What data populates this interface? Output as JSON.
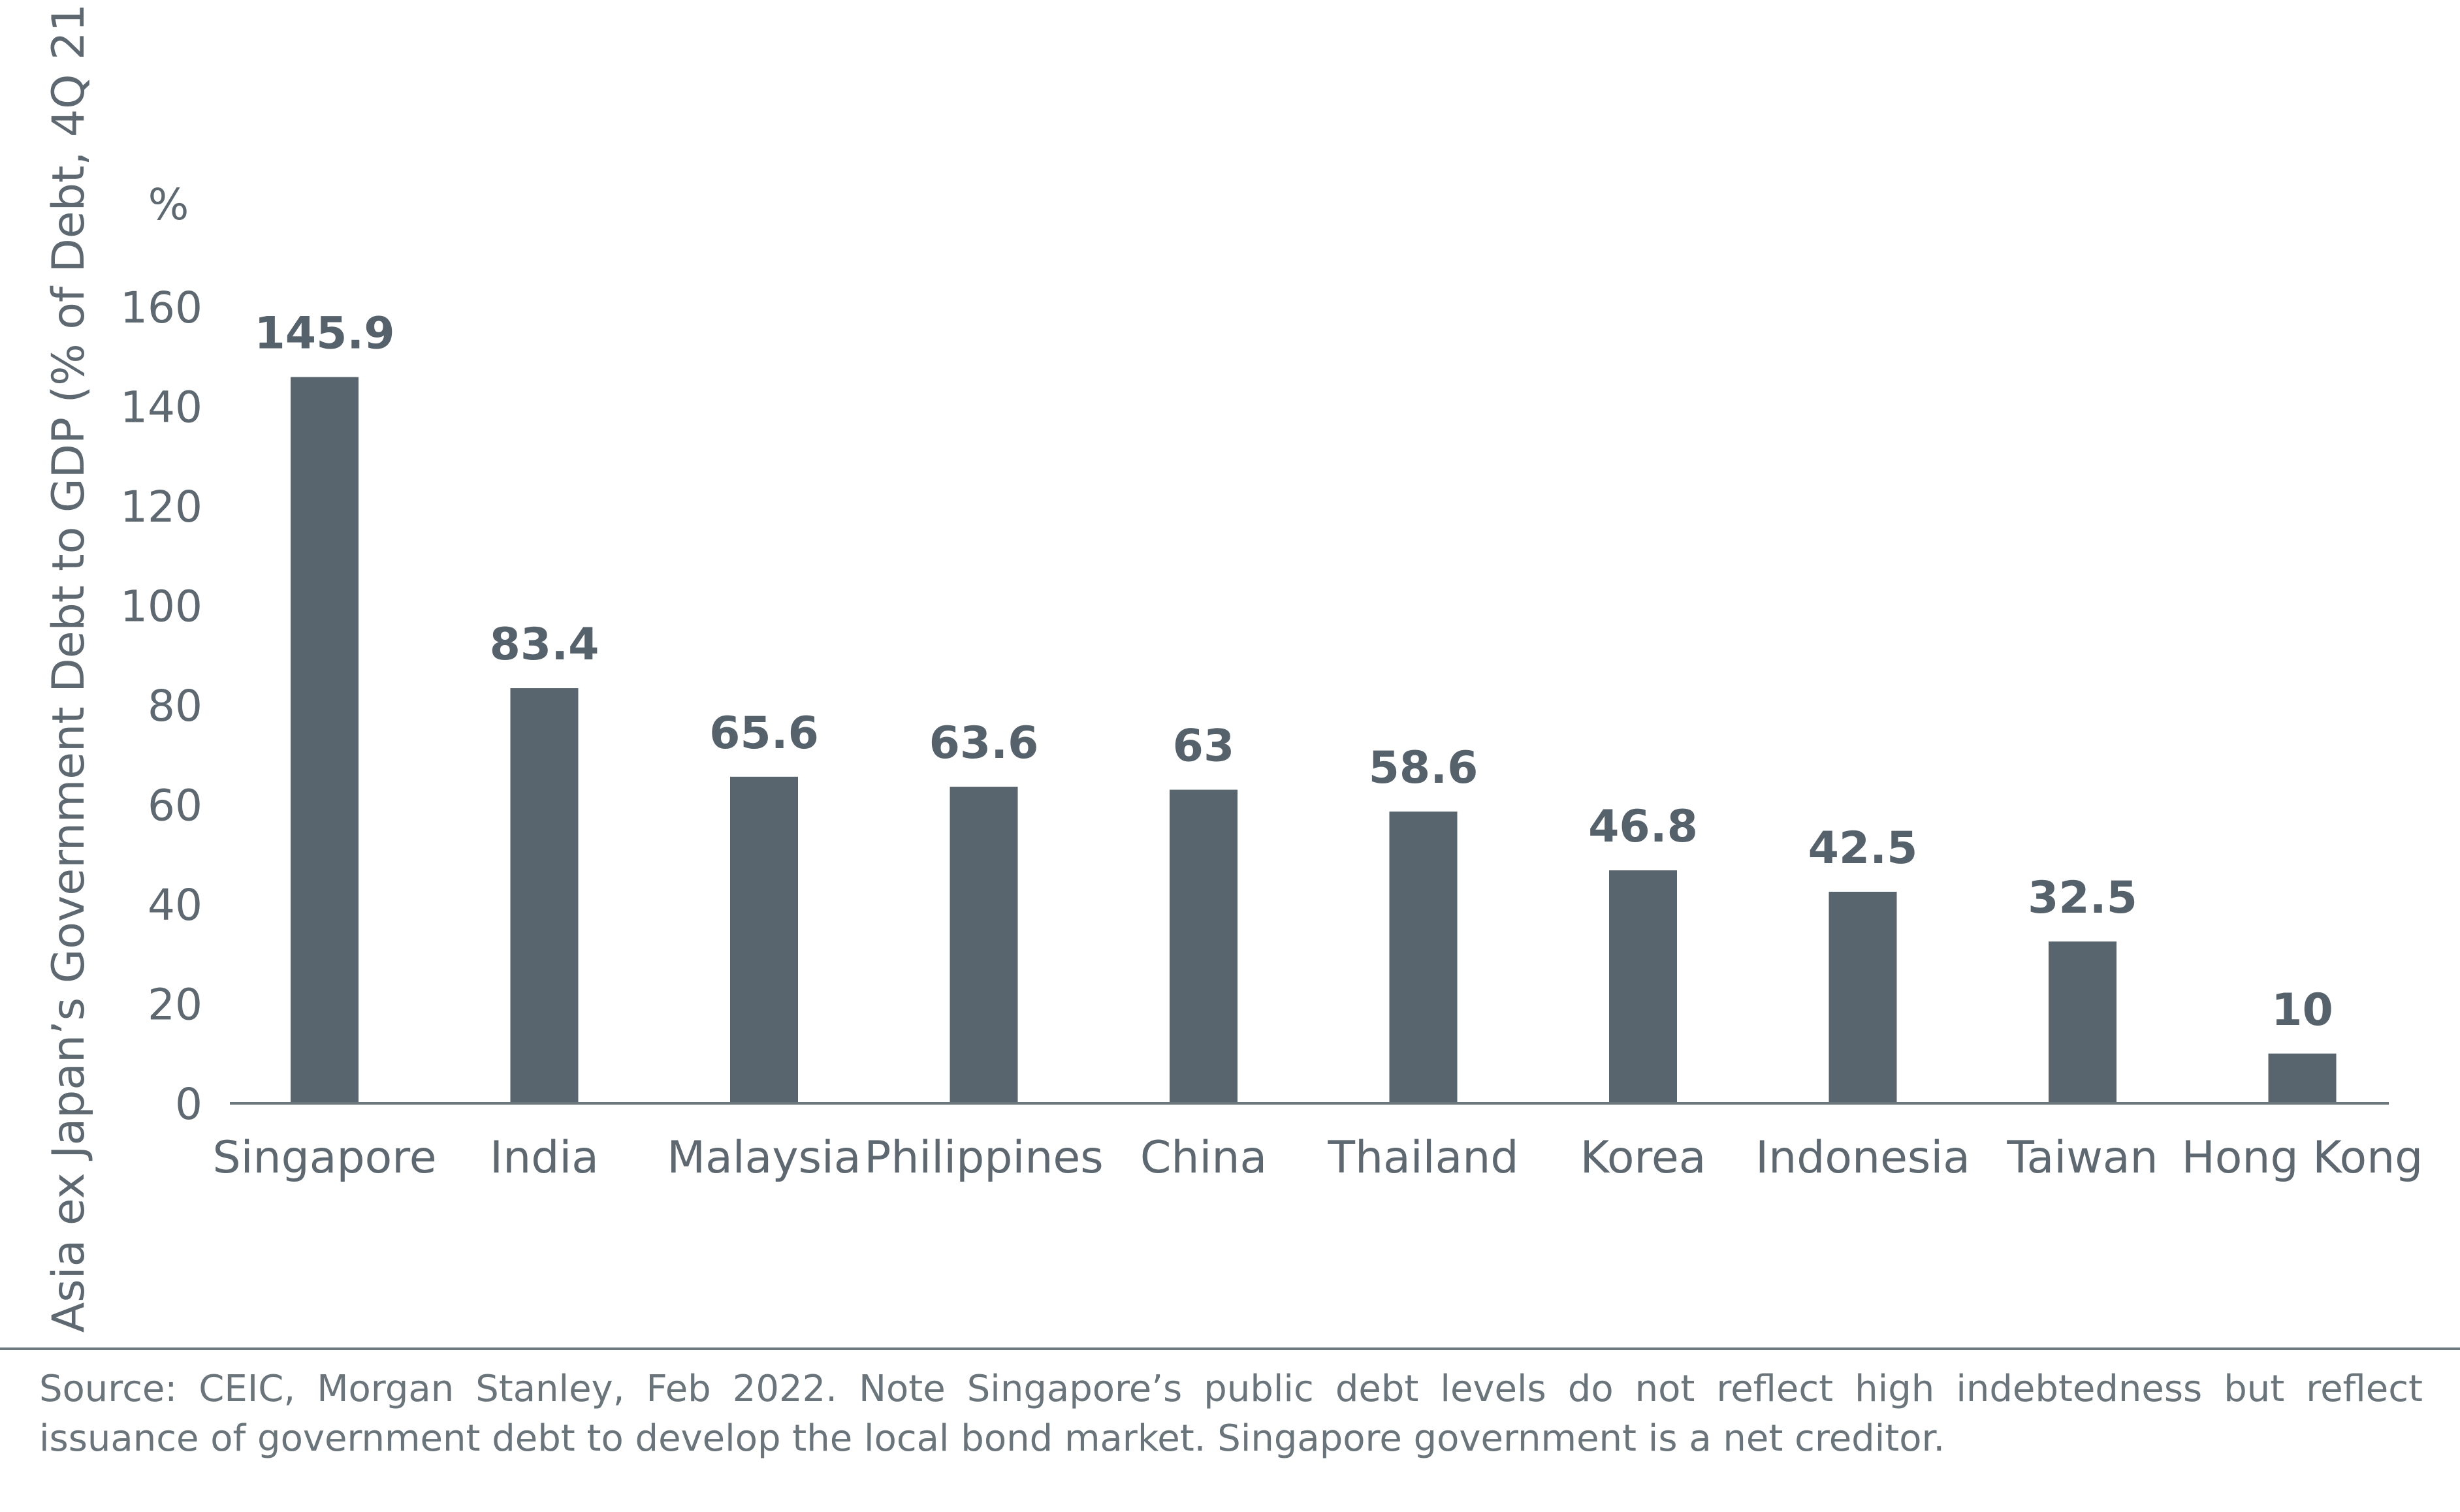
{
  "chart_data": {
    "type": "bar",
    "categories": [
      "Singapore",
      "India",
      "Malaysia",
      "Philippines",
      "China",
      "Thailand",
      "Korea",
      "Indonesia",
      "Taiwan",
      "Hong Kong"
    ],
    "values": [
      145.9,
      83.4,
      65.6,
      63.6,
      63,
      58.6,
      46.8,
      42.5,
      32.5,
      10
    ],
    "data_labels": [
      "145.9",
      "83.4",
      "65.6",
      "63.6",
      "63",
      "58.6",
      "46.8",
      "42.5",
      "32.5",
      "10"
    ],
    "ylabel": "Asia ex Japan’s Government Debt to GDP (% of Debt, 4Q 21)",
    "y_unit": "%",
    "ylim": [
      0,
      160
    ],
    "yticks": [
      0,
      20,
      40,
      60,
      80,
      100,
      120,
      140,
      160
    ],
    "grid": false,
    "legend": "none",
    "bar_color": "#59656e"
  },
  "footer": {
    "source_note": "Source: CEIC, Morgan Stanley, Feb 2022. Note Singapore’s public debt levels do not reflect high indebtedness but reflect issuance of government debt to develop the local bond market. Singapore government is a net creditor."
  }
}
